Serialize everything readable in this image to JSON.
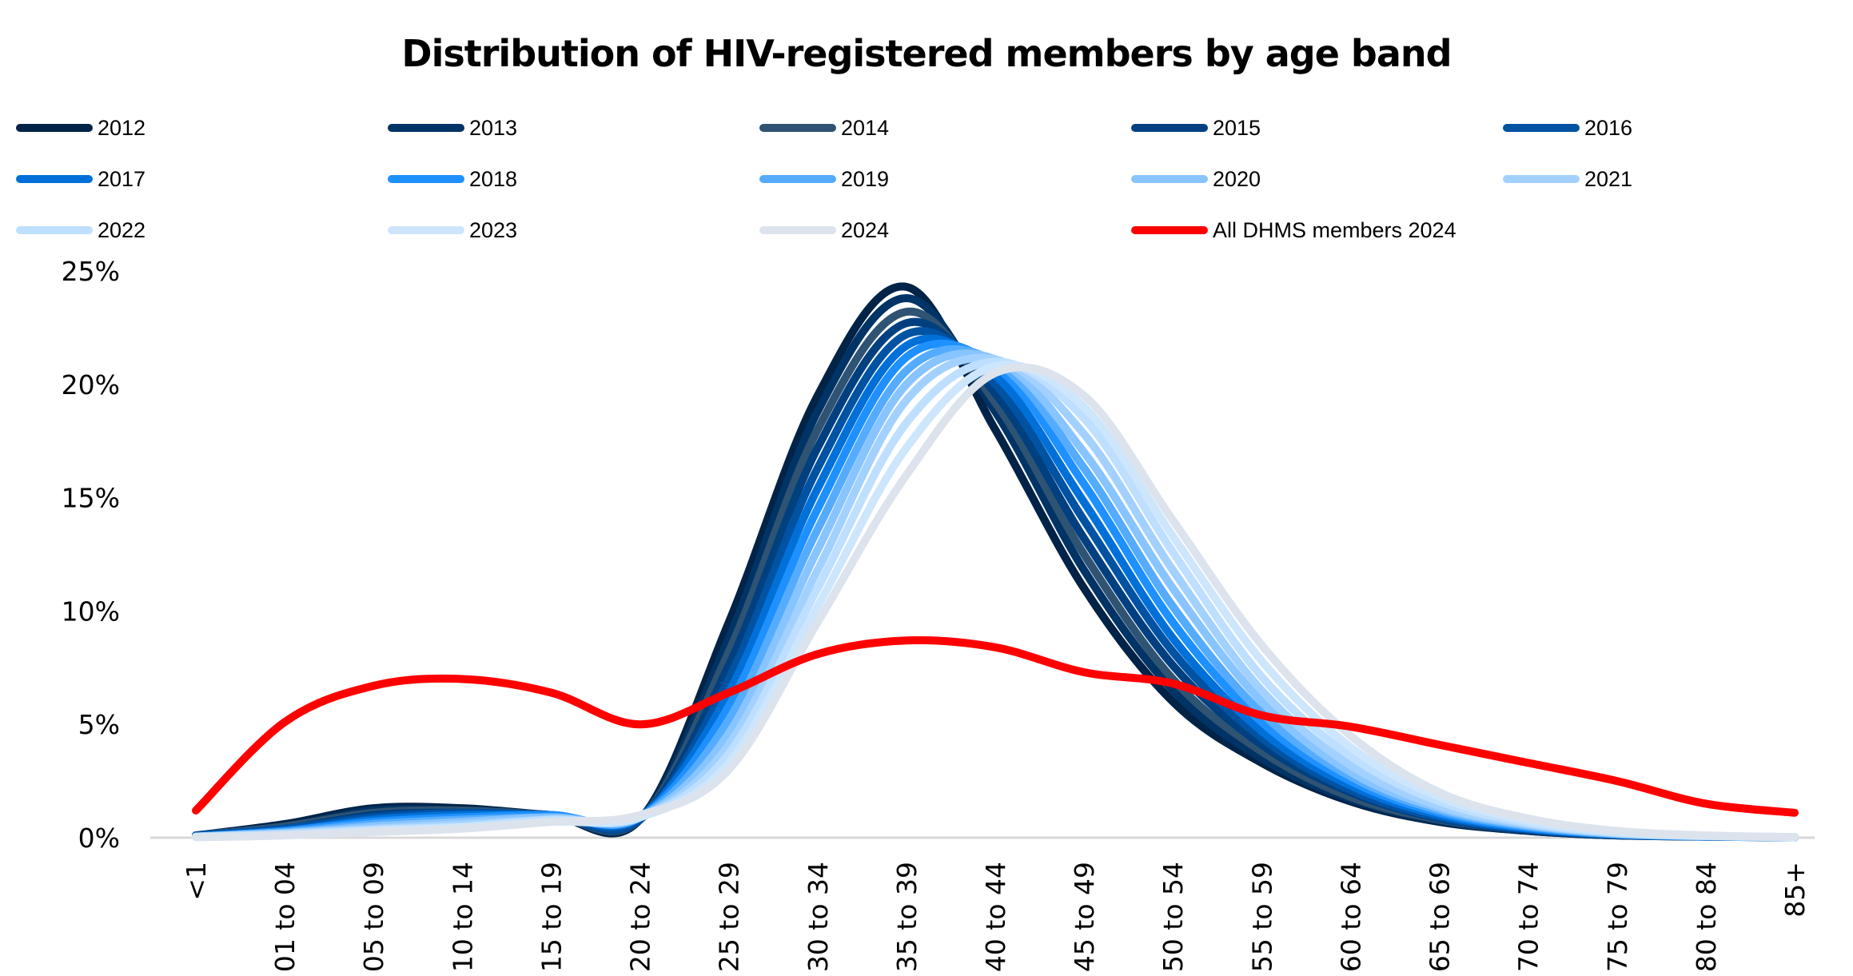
{
  "chart_data": {
    "type": "line",
    "title": "Distribution of HIV-registered members by age band",
    "xlabel": "",
    "ylabel": "",
    "ylim": [
      0,
      25
    ],
    "yticks": [
      "0%",
      "5%",
      "10%",
      "15%",
      "20%",
      "25%"
    ],
    "ytick_values": [
      0,
      5,
      10,
      15,
      20,
      25
    ],
    "grid": false,
    "legend_position": "top",
    "categories": [
      "<1",
      "01 to 04",
      "05 to 09",
      "10 to 14",
      "15 to 19",
      "20 to 24",
      "25 to 29",
      "30 to 34",
      "35 to 39",
      "40 to 44",
      "45 to 49",
      "50 to 54",
      "55 to 59",
      "60 to 64",
      "65 to 69",
      "70 to 74",
      "75 to 79",
      "80 to 84",
      "85+"
    ],
    "series": [
      {
        "name": "2012",
        "color": "#002347",
        "values": [
          0.1,
          0.6,
          1.3,
          1.3,
          1.0,
          0.8,
          9.5,
          19.5,
          24.3,
          18.0,
          11.0,
          6.0,
          3.3,
          1.6,
          0.7,
          0.3,
          0.1,
          0.05,
          0.02
        ]
      },
      {
        "name": "2013",
        "color": "#003366",
        "values": [
          0.1,
          0.5,
          1.2,
          1.2,
          1.0,
          0.8,
          8.8,
          18.8,
          23.8,
          18.8,
          11.8,
          6.5,
          3.5,
          1.7,
          0.75,
          0.3,
          0.1,
          0.05,
          0.02
        ]
      },
      {
        "name": "2014",
        "color": "#2F5373",
        "values": [
          0.1,
          0.5,
          1.1,
          1.2,
          1.0,
          0.8,
          8.2,
          18.0,
          23.2,
          19.2,
          12.5,
          7.0,
          3.8,
          1.8,
          0.8,
          0.35,
          0.12,
          0.05,
          0.02
        ]
      },
      {
        "name": "2015",
        "color": "#004080",
        "values": [
          0.1,
          0.4,
          1.0,
          1.1,
          1.0,
          0.8,
          7.6,
          17.2,
          22.7,
          19.6,
          13.2,
          7.6,
          4.1,
          2.0,
          0.85,
          0.35,
          0.12,
          0.05,
          0.02
        ]
      },
      {
        "name": "2016",
        "color": "#0052A3",
        "values": [
          0.1,
          0.4,
          0.9,
          1.1,
          1.0,
          0.8,
          7.0,
          16.3,
          22.2,
          20.0,
          14.0,
          8.2,
          4.4,
          2.1,
          0.9,
          0.38,
          0.13,
          0.05,
          0.02
        ]
      },
      {
        "name": "2017",
        "color": "#0070D9",
        "values": [
          0.05,
          0.3,
          0.8,
          1.0,
          1.0,
          0.9,
          6.4,
          15.4,
          21.7,
          20.4,
          14.8,
          8.8,
          4.7,
          2.3,
          1.0,
          0.4,
          0.14,
          0.06,
          0.02
        ]
      },
      {
        "name": "2018",
        "color": "#1E90FF",
        "values": [
          0.05,
          0.3,
          0.7,
          0.9,
          1.0,
          0.9,
          5.8,
          14.5,
          21.2,
          20.8,
          15.6,
          9.5,
          5.1,
          2.5,
          1.1,
          0.45,
          0.15,
          0.06,
          0.02
        ]
      },
      {
        "name": "2019",
        "color": "#55ACFF",
        "values": [
          0.05,
          0.25,
          0.6,
          0.8,
          0.9,
          0.9,
          5.2,
          13.6,
          20.6,
          21.0,
          16.3,
          10.2,
          5.5,
          2.7,
          1.2,
          0.5,
          0.16,
          0.06,
          0.02
        ]
      },
      {
        "name": "2020",
        "color": "#88C4FF",
        "values": [
          0.05,
          0.2,
          0.5,
          0.7,
          0.9,
          0.9,
          4.6,
          12.7,
          20.0,
          21.1,
          17.0,
          11.0,
          6.0,
          2.9,
          1.3,
          0.55,
          0.18,
          0.07,
          0.02
        ]
      },
      {
        "name": "2021",
        "color": "#A3D1FF",
        "values": [
          0.05,
          0.2,
          0.4,
          0.6,
          0.8,
          0.9,
          4.1,
          11.8,
          19.3,
          21.1,
          17.8,
          11.8,
          6.5,
          3.2,
          1.4,
          0.6,
          0.2,
          0.07,
          0.03
        ]
      },
      {
        "name": "2022",
        "color": "#BEDFFF",
        "values": [
          0.03,
          0.15,
          0.35,
          0.5,
          0.8,
          0.9,
          3.7,
          11.0,
          18.3,
          21.0,
          18.5,
          12.6,
          7.1,
          3.6,
          1.6,
          0.65,
          0.22,
          0.08,
          0.03
        ]
      },
      {
        "name": "2023",
        "color": "#CEE6FC",
        "values": [
          0.03,
          0.1,
          0.3,
          0.45,
          0.7,
          0.9,
          3.3,
          10.2,
          17.2,
          20.8,
          19.0,
          13.3,
          7.8,
          4.0,
          1.8,
          0.75,
          0.25,
          0.09,
          0.03
        ]
      },
      {
        "name": "2024",
        "color": "#DCE3ED",
        "values": [
          0.02,
          0.1,
          0.25,
          0.4,
          0.7,
          1.0,
          3.0,
          9.5,
          16.0,
          20.5,
          19.5,
          14.0,
          8.5,
          4.5,
          2.0,
          0.85,
          0.3,
          0.1,
          0.03
        ]
      },
      {
        "name": "All DHMS members 2024",
        "color": "#FF0000",
        "values": [
          1.2,
          5.1,
          6.7,
          7.0,
          6.4,
          5.0,
          6.4,
          8.1,
          8.7,
          8.4,
          7.3,
          6.8,
          5.4,
          4.9,
          4.1,
          3.3,
          2.5,
          1.5,
          1.1
        ]
      }
    ]
  }
}
